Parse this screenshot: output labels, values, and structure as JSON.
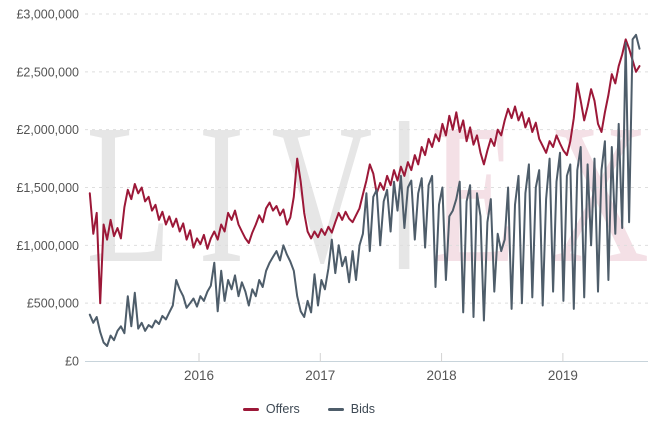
{
  "watermark": {
    "left": "LIV",
    "right": "EX"
  },
  "legend": {
    "items": [
      {
        "label": "Offers"
      },
      {
        "label": "Bids"
      }
    ]
  },
  "colors": {
    "offers": "#9C1838",
    "bids": "#4E5D6A",
    "grid": "#DEDEDE",
    "axis_line": "#C8D4DB",
    "tick": "#D2D2D2",
    "axis_text": "#555555",
    "legend_text": "#3E4954",
    "watermark_gray": "#E6E6E6",
    "watermark_pink": "#F4E0E6",
    "background": "#FFFFFF"
  },
  "chart_data": {
    "type": "line",
    "title": "",
    "xlabel": "",
    "ylabel": "",
    "grid": "horizontal-dashed",
    "legend_position": "bottom-center",
    "x_axis": {
      "domain": [
        2015.085,
        2019.677
      ],
      "tick_years": [
        2016,
        2017,
        2018,
        2019
      ],
      "tick_labels": [
        "2016",
        "2017",
        "2018",
        "2019"
      ]
    },
    "y_axis": {
      "range": [
        0,
        3000000
      ],
      "ticks": [
        {
          "value": 0,
          "label": "£0"
        },
        {
          "value": 500000,
          "label": "£500,000"
        },
        {
          "value": 1000000,
          "label": "£1,000,000"
        },
        {
          "value": 1500000,
          "label": "£1,500,000"
        },
        {
          "value": 2000000,
          "label": "£2,000,000"
        },
        {
          "value": 2500000,
          "label": "£2,500,000"
        },
        {
          "value": 3000000,
          "label": "£3,000,000"
        }
      ]
    },
    "x_start": 2015.1,
    "x_step": 0.0285,
    "series": [
      {
        "name": "Offers",
        "color": "#9C1838",
        "values": [
          1450000,
          1100000,
          1280000,
          500000,
          1180000,
          1050000,
          1220000,
          1080000,
          1150000,
          1060000,
          1330000,
          1480000,
          1400000,
          1530000,
          1450000,
          1500000,
          1380000,
          1420000,
          1300000,
          1350000,
          1220000,
          1290000,
          1180000,
          1250000,
          1160000,
          1230000,
          1120000,
          1190000,
          1050000,
          1130000,
          980000,
          1060000,
          1010000,
          1090000,
          970000,
          1060000,
          1120000,
          1050000,
          1180000,
          1120000,
          1280000,
          1220000,
          1300000,
          1180000,
          1120000,
          1060000,
          1020000,
          1110000,
          1180000,
          1260000,
          1200000,
          1320000,
          1370000,
          1300000,
          1340000,
          1260000,
          1310000,
          1180000,
          1240000,
          1420000,
          1750000,
          1550000,
          1280000,
          1120000,
          1060000,
          1120000,
          1070000,
          1140000,
          1090000,
          1160000,
          1110000,
          1200000,
          1280000,
          1220000,
          1290000,
          1230000,
          1200000,
          1260000,
          1320000,
          1440000,
          1560000,
          1700000,
          1620000,
          1450000,
          1540000,
          1480000,
          1600000,
          1520000,
          1650000,
          1560000,
          1680000,
          1600000,
          1720000,
          1650000,
          1780000,
          1700000,
          1850000,
          1780000,
          1920000,
          1850000,
          1960000,
          1900000,
          2050000,
          1950000,
          2120000,
          2000000,
          2150000,
          1980000,
          2080000,
          1900000,
          2020000,
          1870000,
          1950000,
          1800000,
          1700000,
          1820000,
          1920000,
          1860000,
          2000000,
          1950000,
          2080000,
          2180000,
          2100000,
          2200000,
          2080000,
          2150000,
          2020000,
          2100000,
          1980000,
          2060000,
          1920000,
          1860000,
          1800000,
          1900000,
          1850000,
          1950000,
          1880000,
          1820000,
          1780000,
          1900000,
          2100000,
          2400000,
          2250000,
          2080000,
          2200000,
          2350000,
          2250000,
          2050000,
          1980000,
          2150000,
          2300000,
          2480000,
          2400000,
          2550000,
          2650000,
          2780000,
          2700000,
          2600000,
          2500000,
          2550000
        ]
      },
      {
        "name": "Bids",
        "color": "#4E5D6A",
        "values": [
          400000,
          330000,
          380000,
          250000,
          160000,
          130000,
          220000,
          180000,
          260000,
          300000,
          240000,
          560000,
          300000,
          590000,
          280000,
          330000,
          260000,
          310000,
          290000,
          350000,
          320000,
          390000,
          360000,
          420000,
          480000,
          700000,
          620000,
          560000,
          460000,
          500000,
          540000,
          470000,
          560000,
          520000,
          600000,
          650000,
          850000,
          430000,
          780000,
          520000,
          700000,
          620000,
          740000,
          560000,
          680000,
          600000,
          480000,
          620000,
          560000,
          700000,
          640000,
          780000,
          850000,
          900000,
          950000,
          870000,
          1000000,
          920000,
          860000,
          780000,
          560000,
          430000,
          380000,
          520000,
          420000,
          750000,
          480000,
          700000,
          620000,
          800000,
          1050000,
          760000,
          1000000,
          820000,
          900000,
          680000,
          950000,
          700000,
          1000000,
          1100000,
          1450000,
          950000,
          1420000,
          1480000,
          1000000,
          1380000,
          1480000,
          1120000,
          1550000,
          1300000,
          1600000,
          1150000,
          1500000,
          1560000,
          1050000,
          1450000,
          1580000,
          980000,
          1520000,
          1600000,
          640000,
          1350000,
          1500000,
          700000,
          1250000,
          1300000,
          1400000,
          1550000,
          420000,
          1380000,
          1520000,
          380000,
          1450000,
          1250000,
          350000,
          1200000,
          1400000,
          600000,
          1100000,
          950000,
          1050000,
          1500000,
          450000,
          1350000,
          1600000,
          500000,
          1450000,
          1700000,
          550000,
          1500000,
          1650000,
          480000,
          1400000,
          1750000,
          600000,
          1550000,
          1800000,
          520000,
          1600000,
          1700000,
          450000,
          1650000,
          1850000,
          550000,
          1700000,
          1000000,
          1750000,
          600000,
          1650000,
          1900000,
          700000,
          1850000,
          1100000,
          2050000,
          1150000,
          2750000,
          1200000,
          2780000,
          2820000,
          2700000
        ]
      }
    ]
  }
}
